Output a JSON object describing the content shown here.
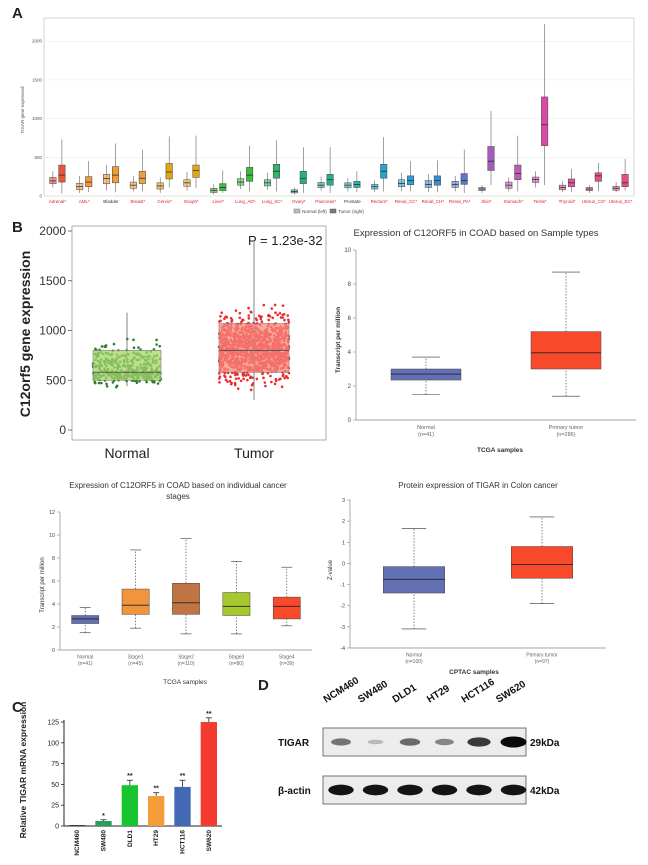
{
  "panels": {
    "A": {
      "letter": "A",
      "ylabel": "TIGAR gene expressed",
      "yticks": [
        "0",
        "500",
        "1000",
        "1500",
        "2000"
      ],
      "legend": [
        "Normal (left)",
        "Tumor (right)"
      ],
      "chart_data": {
        "type": "box",
        "ylim": [
          0,
          2300
        ],
        "categories": [
          "Adrenal*",
          "AML*",
          "Bladder",
          "Breast*",
          "Cervix*",
          "Esoph*",
          "Liver*",
          "Lung_AD*",
          "Lung_SC*",
          "Ovary*",
          "Pancreas*",
          "Prostate",
          "Rectum*",
          "Renal_CC*",
          "Renal_CH*",
          "Renal_PA*",
          "Skin*",
          "Stomach*",
          "Testis*",
          "Thyroid*",
          "Uterus_CS*",
          "Uterus_EC*"
        ],
        "significant": [
          true,
          true,
          false,
          true,
          true,
          true,
          true,
          true,
          true,
          true,
          true,
          false,
          true,
          true,
          true,
          true,
          true,
          true,
          true,
          true,
          true,
          true
        ],
        "normal": [
          [
            110,
            160,
            195,
            240,
            320
          ],
          [
            40,
            80,
            120,
            165,
            260
          ],
          [
            70,
            160,
            225,
            280,
            400
          ],
          [
            60,
            100,
            140,
            180,
            260
          ],
          [
            40,
            90,
            130,
            170,
            240
          ],
          [
            70,
            125,
            170,
            210,
            310
          ],
          [
            20,
            45,
            70,
            100,
            150
          ],
          [
            90,
            140,
            180,
            225,
            320
          ],
          [
            80,
            130,
            170,
            210,
            300
          ],
          [
            20,
            40,
            60,
            80,
            110
          ],
          [
            70,
            110,
            140,
            175,
            250
          ],
          [
            60,
            105,
            140,
            170,
            230
          ],
          [
            50,
            90,
            120,
            150,
            200
          ],
          [
            60,
            120,
            160,
            210,
            300
          ],
          [
            50,
            110,
            150,
            200,
            280
          ],
          [
            60,
            110,
            150,
            190,
            260
          ],
          [
            40,
            70,
            90,
            110,
            140
          ],
          [
            60,
            100,
            140,
            180,
            240
          ],
          [
            110,
            175,
            215,
            245,
            320
          ],
          [
            50,
            80,
            110,
            140,
            190
          ],
          [
            40,
            70,
            90,
            110,
            140
          ],
          [
            50,
            75,
            100,
            125,
            180
          ]
        ],
        "tumor": [
          [
            30,
            180,
            270,
            400,
            730
          ],
          [
            50,
            120,
            180,
            250,
            450
          ],
          [
            50,
            170,
            270,
            380,
            680
          ],
          [
            60,
            160,
            230,
            320,
            600
          ],
          [
            110,
            220,
            310,
            420,
            770
          ],
          [
            100,
            240,
            330,
            400,
            780
          ],
          [
            40,
            70,
            110,
            160,
            330
          ],
          [
            60,
            190,
            270,
            370,
            650
          ],
          [
            60,
            230,
            320,
            410,
            720
          ],
          [
            40,
            160,
            230,
            320,
            630
          ],
          [
            40,
            140,
            210,
            280,
            630
          ],
          [
            50,
            110,
            150,
            190,
            320
          ],
          [
            60,
            230,
            320,
            410,
            760
          ],
          [
            60,
            145,
            200,
            260,
            450
          ],
          [
            50,
            140,
            200,
            260,
            460
          ],
          [
            40,
            150,
            200,
            290,
            600
          ],
          [
            140,
            330,
            450,
            640,
            1100
          ],
          [
            60,
            210,
            290,
            400,
            780
          ],
          [
            140,
            650,
            920,
            1280,
            2220
          ],
          [
            50,
            120,
            170,
            220,
            350
          ],
          [
            60,
            190,
            260,
            300,
            430
          ],
          [
            70,
            120,
            170,
            280,
            480
          ]
        ]
      }
    },
    "B1": {
      "letter": "B",
      "ylabel": "C12orf5 gene expression",
      "yticks": [
        "0",
        "500",
        "1000",
        "1500",
        "2000"
      ],
      "categories": [
        "Normal",
        "Tumor"
      ],
      "pvalue": "P = 1.23e-32",
      "chart_data": {
        "type": "box-jitter",
        "ylim": [
          0,
          2000
        ],
        "normal": {
          "box": [
            440,
            500,
            580,
            800,
            1180
          ],
          "n": 360
        },
        "tumor": {
          "box": [
            300,
            580,
            800,
            1070,
            1900
          ],
          "n": 1000
        }
      }
    },
    "B2": {
      "title": "Expression of C12ORF5 in COAD based on Sample types",
      "ylabel": "Transcript per million",
      "xlabel": "TCGA samples",
      "yticks": [
        "0",
        "2",
        "4",
        "6",
        "8",
        "10"
      ],
      "categories": [
        "Normal",
        "Primary tumor"
      ],
      "counts": [
        "(n=41)",
        "(n=286)"
      ],
      "chart_data": {
        "type": "box",
        "ylim": [
          0,
          10
        ],
        "boxes": [
          [
            1.5,
            2.35,
            2.7,
            3.0,
            3.7
          ],
          [
            1.4,
            3.0,
            3.95,
            5.2,
            8.7
          ]
        ],
        "colors": [
          "#6470b4",
          "#f84a2a"
        ]
      }
    },
    "B3": {
      "title_line1": "Expression of C12ORF5 in COAD based on individual cancer",
      "title_line2": "stages",
      "ylabel": "Transcript per million",
      "xlabel": "TCGA samples",
      "yticks": [
        "0",
        "2",
        "4",
        "6",
        "8",
        "10",
        "12"
      ],
      "categories": [
        "Normal",
        "Stage1",
        "Stage2",
        "Stage3",
        "Stage4"
      ],
      "counts": [
        "(n=41)",
        "(n=45)",
        "(n=110)",
        "(n=80)",
        "(n=39)"
      ],
      "chart_data": {
        "type": "box",
        "ylim": [
          0,
          12
        ],
        "boxes": [
          [
            1.5,
            2.3,
            2.7,
            3.0,
            3.7
          ],
          [
            1.9,
            3.1,
            3.9,
            5.3,
            8.7
          ],
          [
            1.4,
            3.1,
            4.1,
            5.8,
            9.7
          ],
          [
            1.4,
            3.0,
            3.8,
            5.0,
            7.7
          ],
          [
            2.1,
            2.7,
            3.8,
            4.6,
            7.2
          ]
        ],
        "colors": [
          "#6470b4",
          "#f0953c",
          "#c17443",
          "#a6ca2d",
          "#f84a2a"
        ]
      }
    },
    "B4": {
      "title": "Protein expression of TIGAR in Colon cancer",
      "ylabel": "Z-value",
      "xlabel": "CPTAC samples",
      "yticks": [
        "-4",
        "-3",
        "-2",
        "-1",
        "0",
        "1",
        "2",
        "3"
      ],
      "categories": [
        "Normal",
        "Primary tumor"
      ],
      "counts": [
        "(n=100)",
        "(n=97)"
      ],
      "chart_data": {
        "type": "box",
        "ylim": [
          -4,
          3
        ],
        "boxes": [
          [
            -3.1,
            -1.4,
            -0.75,
            -0.15,
            1.65
          ],
          [
            -1.9,
            -0.7,
            -0.05,
            0.8,
            2.2
          ]
        ],
        "colors": [
          "#6470b4",
          "#f84a2a"
        ]
      }
    },
    "C": {
      "letter": "C",
      "ylabel": "Relative TIGAR mRNA expression",
      "yticks": [
        "0",
        "25",
        "50",
        "75",
        "100",
        "125"
      ],
      "chart_data": {
        "type": "bar",
        "ylim": [
          0,
          125
        ],
        "categories": [
          "NCM460",
          "SW480",
          "DLD1",
          "HT29",
          "HCT116",
          "SW620"
        ],
        "values": [
          1,
          6,
          49,
          36,
          47,
          125
        ],
        "errors": [
          0,
          1.5,
          6,
          4,
          8,
          5
        ],
        "significance": [
          "",
          "*",
          "**",
          "**",
          "**",
          "**"
        ],
        "colors": [
          "#1a1a1a",
          "#27a05a",
          "#18c42f",
          "#f59b3a",
          "#4469b4",
          "#f43b30"
        ]
      }
    },
    "D": {
      "letter": "D",
      "lanes": [
        "NCM460",
        "SW480",
        "DLD1",
        "HT29",
        "HCT116",
        "SW620"
      ],
      "rows": [
        {
          "label": "TIGAR",
          "size": "29kDa",
          "intensity": [
            0.45,
            0.08,
            0.5,
            0.35,
            0.75,
            1.0
          ]
        },
        {
          "label": "β-actin",
          "size": "42kDa",
          "intensity": [
            0.95,
            0.95,
            0.95,
            0.95,
            0.95,
            0.95
          ]
        }
      ]
    }
  }
}
